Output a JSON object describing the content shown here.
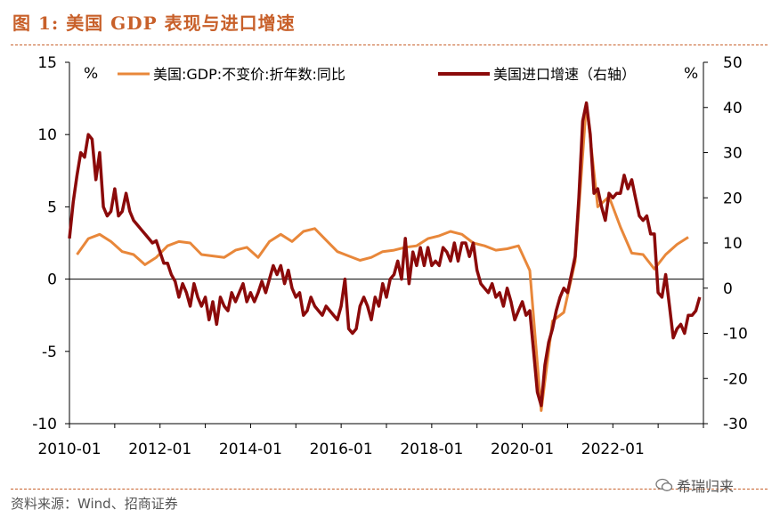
{
  "title": "图 1:  美国 GDP 表现与进口增速",
  "source": "资料来源：Wind、招商证券",
  "watermark": "希瑞归来",
  "colors": {
    "gdp": "#e8873a",
    "imports": "#8b0a0a",
    "accent": "#c8602a"
  },
  "chart_data": {
    "type": "line",
    "left_unit": "%",
    "right_unit": "%",
    "left_ylim": [
      -10,
      15
    ],
    "right_ylim": [
      -30,
      50
    ],
    "left_ticks": [
      "15",
      "10",
      "5",
      "0",
      "-5",
      "-10"
    ],
    "right_ticks": [
      "50",
      "40",
      "30",
      "20",
      "10",
      "0",
      "-10",
      "-20",
      "-30"
    ],
    "x_ticks": [
      "2010-01",
      "2012-01",
      "2014-01",
      "2016-01",
      "2018-01",
      "2020-01",
      "2022-01"
    ],
    "legend_position": "top",
    "series": [
      {
        "name": "美国:GDP:不变价:折年数:同比",
        "axis": "left",
        "points": [
          [
            "2010-03",
            1.7
          ],
          [
            "2010-06",
            2.8
          ],
          [
            "2010-09",
            3.1
          ],
          [
            "2010-12",
            2.6
          ],
          [
            "2011-03",
            1.9
          ],
          [
            "2011-06",
            1.7
          ],
          [
            "2011-09",
            1.0
          ],
          [
            "2011-12",
            1.5
          ],
          [
            "2012-03",
            2.3
          ],
          [
            "2012-06",
            2.6
          ],
          [
            "2012-09",
            2.5
          ],
          [
            "2012-12",
            1.7
          ],
          [
            "2013-03",
            1.6
          ],
          [
            "2013-06",
            1.5
          ],
          [
            "2013-09",
            2.0
          ],
          [
            "2013-12",
            2.2
          ],
          [
            "2014-03",
            1.5
          ],
          [
            "2014-06",
            2.6
          ],
          [
            "2014-09",
            3.1
          ],
          [
            "2014-12",
            2.6
          ],
          [
            "2015-03",
            3.3
          ],
          [
            "2015-06",
            3.5
          ],
          [
            "2015-09",
            2.7
          ],
          [
            "2015-12",
            1.9
          ],
          [
            "2016-03",
            1.6
          ],
          [
            "2016-06",
            1.3
          ],
          [
            "2016-09",
            1.5
          ],
          [
            "2016-12",
            1.9
          ],
          [
            "2017-03",
            2.0
          ],
          [
            "2017-06",
            2.2
          ],
          [
            "2017-09",
            2.3
          ],
          [
            "2017-12",
            2.8
          ],
          [
            "2018-03",
            3.0
          ],
          [
            "2018-06",
            3.3
          ],
          [
            "2018-09",
            3.1
          ],
          [
            "2018-12",
            2.5
          ],
          [
            "2019-03",
            2.3
          ],
          [
            "2019-06",
            2.0
          ],
          [
            "2019-09",
            2.1
          ],
          [
            "2019-12",
            2.3
          ],
          [
            "2020-03",
            0.6
          ],
          [
            "2020-06",
            -9.1
          ],
          [
            "2020-09",
            -2.9
          ],
          [
            "2020-12",
            -2.3
          ],
          [
            "2021-03",
            1.2
          ],
          [
            "2021-06",
            12.2
          ],
          [
            "2021-09",
            5.0
          ],
          [
            "2021-12",
            5.7
          ],
          [
            "2022-03",
            3.6
          ],
          [
            "2022-06",
            1.8
          ],
          [
            "2022-09",
            1.7
          ],
          [
            "2022-12",
            0.7
          ],
          [
            "2023-03",
            1.7
          ],
          [
            "2023-06",
            2.4
          ],
          [
            "2023-09",
            2.9
          ]
        ]
      },
      {
        "name": "美国进口增速（右轴）",
        "axis": "right",
        "points": [
          [
            "2010-01",
            11.0
          ],
          [
            "2010-02",
            19.0
          ],
          [
            "2010-03",
            25.0
          ],
          [
            "2010-04",
            30.0
          ],
          [
            "2010-05",
            29.0
          ],
          [
            "2010-06",
            34.0
          ],
          [
            "2010-07",
            33.0
          ],
          [
            "2010-08",
            24.0
          ],
          [
            "2010-09",
            30.0
          ],
          [
            "2010-10",
            18.0
          ],
          [
            "2010-11",
            16.0
          ],
          [
            "2010-12",
            17.0
          ],
          [
            "2011-01",
            22.0
          ],
          [
            "2011-02",
            16.0
          ],
          [
            "2011-03",
            17.0
          ],
          [
            "2011-04",
            21.0
          ],
          [
            "2011-05",
            17.0
          ],
          [
            "2011-06",
            15.0
          ],
          [
            "2011-07",
            14.0
          ],
          [
            "2011-08",
            13.0
          ],
          [
            "2011-09",
            12.0
          ],
          [
            "2011-10",
            11.0
          ],
          [
            "2011-11",
            10.0
          ],
          [
            "2011-12",
            10.5
          ],
          [
            "2012-01",
            8.0
          ],
          [
            "2012-02",
            5.5
          ],
          [
            "2012-03",
            5.5
          ],
          [
            "2012-04",
            3.0
          ],
          [
            "2012-05",
            1.5
          ],
          [
            "2012-06",
            -2.0
          ],
          [
            "2012-07",
            1.0
          ],
          [
            "2012-08",
            -1.0
          ],
          [
            "2012-09",
            -4.0
          ],
          [
            "2012-10",
            1.0
          ],
          [
            "2012-11",
            -2.0
          ],
          [
            "2012-12",
            -4.0
          ],
          [
            "2013-01",
            -2.0
          ],
          [
            "2013-02",
            -7.0
          ],
          [
            "2013-03",
            -3.0
          ],
          [
            "2013-04",
            -8.0
          ],
          [
            "2013-05",
            -2.0
          ],
          [
            "2013-06",
            -4.0
          ],
          [
            "2013-07",
            -5.0
          ],
          [
            "2013-08",
            -1.0
          ],
          [
            "2013-09",
            -3.0
          ],
          [
            "2013-10",
            -1.0
          ],
          [
            "2013-11",
            1.0
          ],
          [
            "2013-12",
            -3.0
          ],
          [
            "2014-01",
            -1.0
          ],
          [
            "2014-02",
            -3.0
          ],
          [
            "2014-03",
            -1.0
          ],
          [
            "2014-04",
            1.5
          ],
          [
            "2014-05",
            -1.0
          ],
          [
            "2014-06",
            2.0
          ],
          [
            "2014-07",
            5.0
          ],
          [
            "2014-08",
            3.0
          ],
          [
            "2014-09",
            5.0
          ],
          [
            "2014-10",
            1.0
          ],
          [
            "2014-11",
            4.0
          ],
          [
            "2014-12",
            0.0
          ],
          [
            "2015-01",
            -2.0
          ],
          [
            "2015-02",
            -1.0
          ],
          [
            "2015-03",
            -6.0
          ],
          [
            "2015-04",
            -5.0
          ],
          [
            "2015-05",
            -2.0
          ],
          [
            "2015-06",
            -4.0
          ],
          [
            "2015-07",
            -5.0
          ],
          [
            "2015-08",
            -6.0
          ],
          [
            "2015-09",
            -4.0
          ],
          [
            "2015-10",
            -5.0
          ],
          [
            "2015-11",
            -6.0
          ],
          [
            "2015-12",
            -7.0
          ],
          [
            "2016-01",
            -4.0
          ],
          [
            "2016-02",
            2.0
          ],
          [
            "2016-03",
            -9.0
          ],
          [
            "2016-04",
            -10.0
          ],
          [
            "2016-05",
            -9.0
          ],
          [
            "2016-06",
            -4.0
          ],
          [
            "2016-07",
            -2.0
          ],
          [
            "2016-08",
            -4.0
          ],
          [
            "2016-09",
            -7.0
          ],
          [
            "2016-10",
            -2.0
          ],
          [
            "2016-11",
            -4.0
          ],
          [
            "2016-12",
            1.0
          ],
          [
            "2017-01",
            -2.0
          ],
          [
            "2017-02",
            2.0
          ],
          [
            "2017-03",
            3.0
          ],
          [
            "2017-04",
            6.0
          ],
          [
            "2017-05",
            2.0
          ],
          [
            "2017-06",
            11.0
          ],
          [
            "2017-07",
            1.0
          ],
          [
            "2017-08",
            8.0
          ],
          [
            "2017-09",
            5.0
          ],
          [
            "2017-10",
            9.0
          ],
          [
            "2017-11",
            5.0
          ],
          [
            "2017-12",
            9.0
          ],
          [
            "2018-01",
            5.0
          ],
          [
            "2018-02",
            6.0
          ],
          [
            "2018-03",
            5.0
          ],
          [
            "2018-04",
            9.0
          ],
          [
            "2018-05",
            8.0
          ],
          [
            "2018-06",
            6.0
          ],
          [
            "2018-07",
            10.0
          ],
          [
            "2018-08",
            6.0
          ],
          [
            "2018-09",
            10.0
          ],
          [
            "2018-10",
            10.0
          ],
          [
            "2018-11",
            7.0
          ],
          [
            "2018-12",
            10.0
          ],
          [
            "2019-01",
            4.0
          ],
          [
            "2019-02",
            1.0
          ],
          [
            "2019-03",
            0.0
          ],
          [
            "2019-04",
            -1.0
          ],
          [
            "2019-05",
            1.0
          ],
          [
            "2019-06",
            -2.0
          ],
          [
            "2019-07",
            -1.0
          ],
          [
            "2019-08",
            -4.0
          ],
          [
            "2019-09",
            0.0
          ],
          [
            "2019-10",
            -3.0
          ],
          [
            "2019-11",
            -7.0
          ],
          [
            "2019-12",
            -5.0
          ],
          [
            "2020-01",
            -3.0
          ],
          [
            "2020-02",
            -6.0
          ],
          [
            "2020-03",
            -5.0
          ],
          [
            "2020-04",
            -14.0
          ],
          [
            "2020-05",
            -23.0
          ],
          [
            "2020-06",
            -26.0
          ],
          [
            "2020-07",
            -17.0
          ],
          [
            "2020-08",
            -12.0
          ],
          [
            "2020-09",
            -9.0
          ],
          [
            "2020-10",
            -5.0
          ],
          [
            "2020-11",
            -2.0
          ],
          [
            "2020-12",
            0.0
          ],
          [
            "2021-01",
            -1.0
          ],
          [
            "2021-02",
            3.0
          ],
          [
            "2021-03",
            7.0
          ],
          [
            "2021-04",
            20.0
          ],
          [
            "2021-05",
            37.0
          ],
          [
            "2021-06",
            41.0
          ],
          [
            "2021-07",
            34.0
          ],
          [
            "2021-08",
            21.0
          ],
          [
            "2021-09",
            22.0
          ],
          [
            "2021-10",
            18.0
          ],
          [
            "2021-11",
            15.0
          ],
          [
            "2021-12",
            21.0
          ],
          [
            "2022-01",
            20.0
          ],
          [
            "2022-02",
            21.0
          ],
          [
            "2022-03",
            21.0
          ],
          [
            "2022-04",
            25.0
          ],
          [
            "2022-05",
            22.0
          ],
          [
            "2022-06",
            24.0
          ],
          [
            "2022-07",
            20.0
          ],
          [
            "2022-08",
            16.0
          ],
          [
            "2022-09",
            15.0
          ],
          [
            "2022-10",
            16.0
          ],
          [
            "2022-11",
            12.0
          ],
          [
            "2022-12",
            12.0
          ],
          [
            "2023-01",
            -1.0
          ],
          [
            "2023-02",
            -2.0
          ],
          [
            "2023-03",
            3.0
          ],
          [
            "2023-04",
            -4.0
          ],
          [
            "2023-05",
            -11.0
          ],
          [
            "2023-06",
            -9.0
          ],
          [
            "2023-07",
            -8.0
          ],
          [
            "2023-08",
            -10.0
          ],
          [
            "2023-09",
            -6.0
          ],
          [
            "2023-10",
            -6.0
          ],
          [
            "2023-11",
            -5.0
          ],
          [
            "2023-12",
            -2.0
          ]
        ]
      }
    ]
  }
}
